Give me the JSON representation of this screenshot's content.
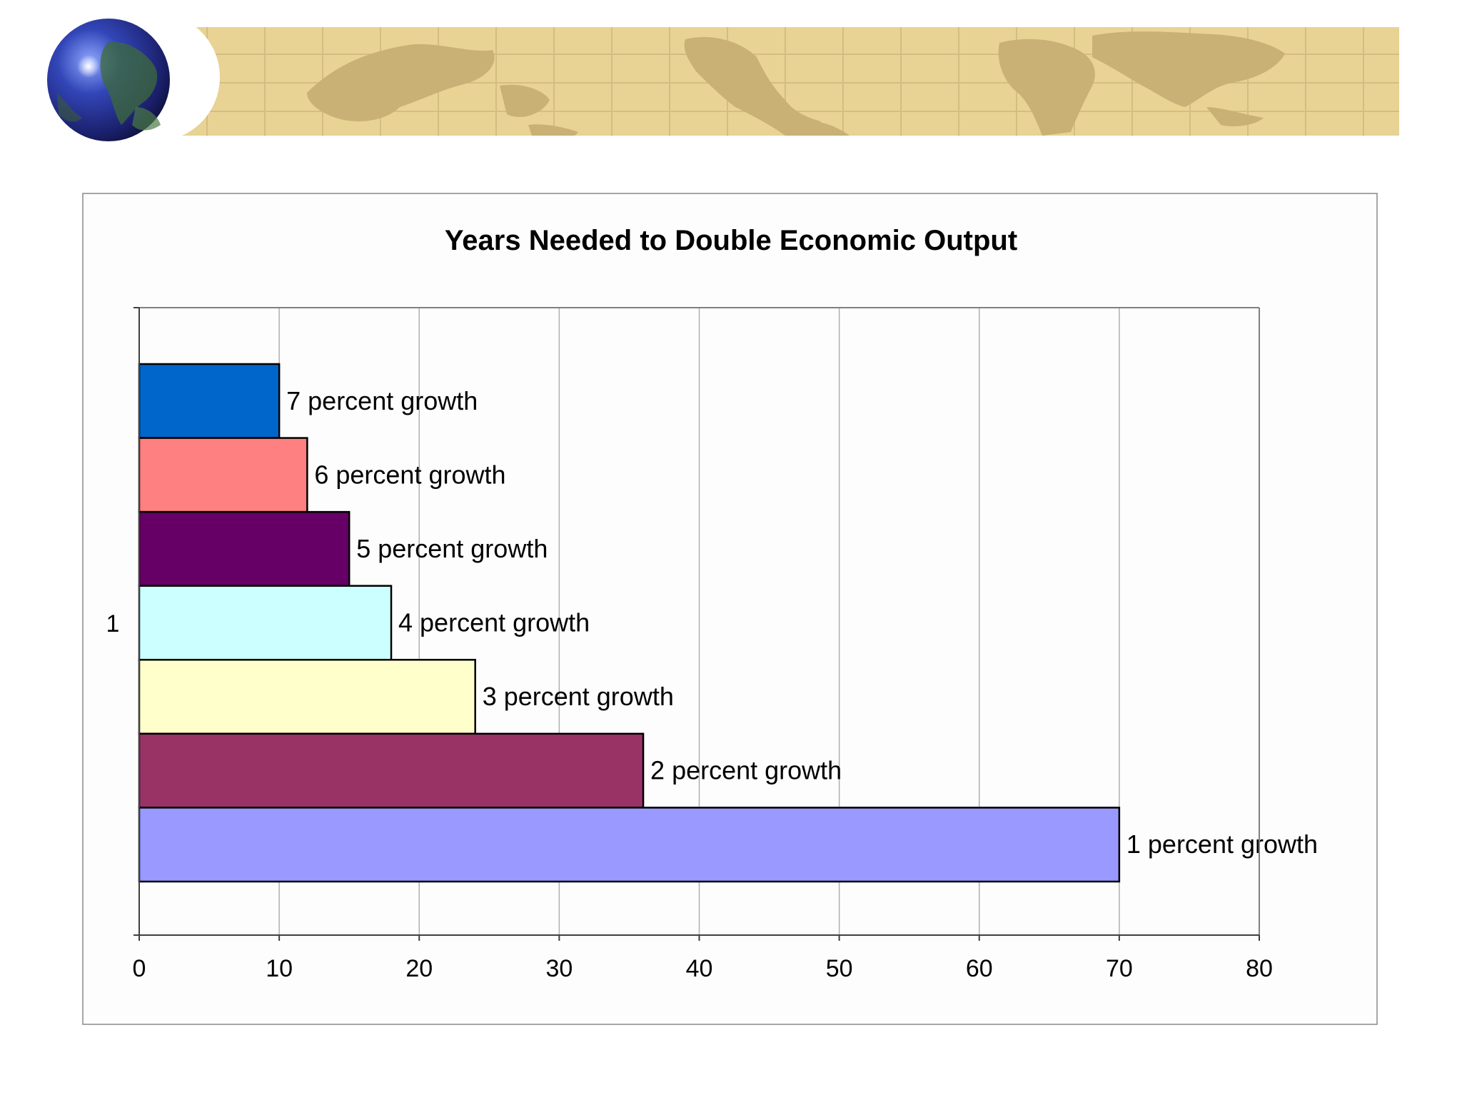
{
  "colors": {
    "banner": "#e8d294",
    "banner_land": "#c9b074",
    "banner_grid": "#d4bd80",
    "bar_outline": "#000000",
    "gridline": "#b0b0b0",
    "frame": "#888888"
  },
  "chart_data": {
    "type": "bar",
    "orientation": "horizontal",
    "title": "Years Needed to Double Economic Output",
    "xlabel": "",
    "ylabel": "",
    "category_label": "1",
    "xlim": [
      0,
      80
    ],
    "x_ticks": [
      0,
      10,
      20,
      30,
      40,
      50,
      60,
      70,
      80
    ],
    "grid": true,
    "legend": "none",
    "series": [
      {
        "name": "7 percent growth",
        "value": 10,
        "color": "#0066cc"
      },
      {
        "name": "6 percent growth",
        "value": 12,
        "color": "#ff8080"
      },
      {
        "name": "5 percent growth",
        "value": 15,
        "color": "#660066"
      },
      {
        "name": "4 percent growth",
        "value": 18,
        "color": "#ccffff"
      },
      {
        "name": "3 percent growth",
        "value": 24,
        "color": "#ffffcc"
      },
      {
        "name": "2 percent growth",
        "value": 36,
        "color": "#993366"
      },
      {
        "name": "1 percent growth",
        "value": 70,
        "color": "#9999ff"
      }
    ]
  }
}
